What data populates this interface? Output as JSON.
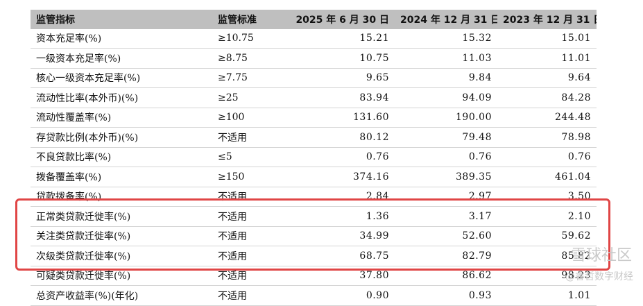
{
  "header": [
    "监管指标",
    "监管标准",
    "2025 年 6 月 30 日",
    "2024 年 12 月 31 日",
    "2023 年 12 月 31 日"
  ],
  "rows": [
    [
      "资本充足率(%)",
      "≥10.75",
      "15.21",
      "15.32",
      "15.01"
    ],
    [
      "一级资本充足率(%)",
      "≥8.75",
      "10.75",
      "11.03",
      "11.01"
    ],
    [
      "核心一级资本充足率(%)",
      "≥7.75",
      "9.65",
      "9.84",
      "9.64"
    ],
    [
      "流动性比率(本外币)(%)",
      "≥25",
      "83.94",
      "94.09",
      "84.28"
    ],
    [
      "流动性覆盖率(%)",
      "≥100",
      "131.60",
      "190.00",
      "244.48"
    ],
    [
      "存贷款比例(本外币)(%)",
      "不适用",
      "80.12",
      "79.48",
      "78.98"
    ],
    [
      "不良贷款比率(%)",
      "≤5",
      "0.76",
      "0.76",
      "0.76"
    ],
    [
      "拨备覆盖率(%)",
      "≥150",
      "374.16",
      "389.35",
      "461.04"
    ],
    [
      "贷款拨备率(%)",
      "不适用",
      "2.84",
      "2.97",
      "3.50"
    ],
    [
      "正常类贷款迁徙率(%)",
      "不适用",
      "1.36",
      "3.17",
      "2.10"
    ],
    [
      "关注类贷款迁徙率(%)",
      "不适用",
      "34.99",
      "52.60",
      "59.62"
    ],
    [
      "次级类贷款迁徙率(%)",
      "不适用",
      "68.75",
      "82.79",
      "85.82"
    ],
    [
      "可疑类贷款迁徙率(%)",
      "不适用",
      "37.80",
      "86.62",
      "98.23"
    ],
    [
      "总资产收益率(%)(年化)",
      "不适用",
      "0.90",
      "0.93",
      "1.01"
    ]
  ],
  "watermark": {
    "line1": "雪球社区",
    "line2": "@睿哲数字财经"
  },
  "colors": {
    "header_bg": "#bfbfbf",
    "highlight_border": "#e04545"
  }
}
